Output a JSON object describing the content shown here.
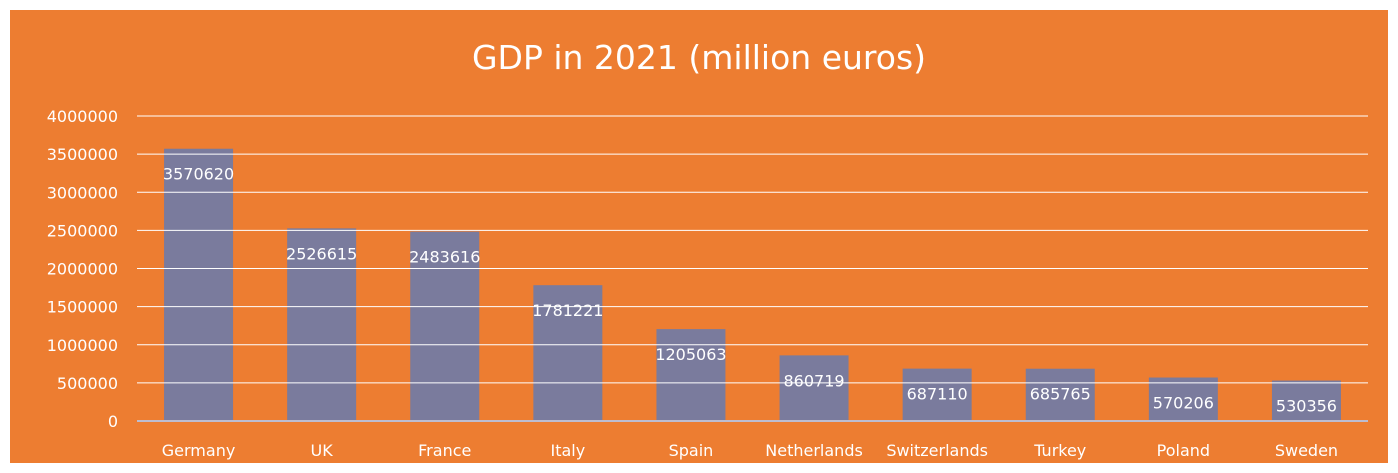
{
  "colors": {
    "background": "#ED7D31",
    "bar": "#7A7B9D",
    "gridline": "#FFFFFF",
    "axis_line": "#BDBDD0",
    "text": "#FFFFFF"
  },
  "chart_data": {
    "type": "bar",
    "title": "GDP in 2021 (million euros)",
    "xlabel": "",
    "ylabel": "",
    "categories": [
      "Germany",
      "UK",
      "France",
      "Italy",
      "Spain",
      "Netherlands",
      "Switzerlands",
      "Turkey",
      "Poland",
      "Sweden"
    ],
    "values": [
      3570620,
      2526615,
      2483616,
      1781221,
      1205063,
      860719,
      687110,
      685765,
      570206,
      530356
    ],
    "data_labels": [
      "3570620",
      "2526615",
      "2483616",
      "1781221",
      "1205063",
      "860719",
      "687110",
      "685765",
      "570206",
      "530356"
    ],
    "ylim": [
      0,
      4000000
    ],
    "yticks": [
      "0",
      "500000",
      "1000000",
      "1500000",
      "2000000",
      "2500000",
      "3000000",
      "3500000",
      "4000000"
    ],
    "grid": true,
    "legend": "none"
  }
}
